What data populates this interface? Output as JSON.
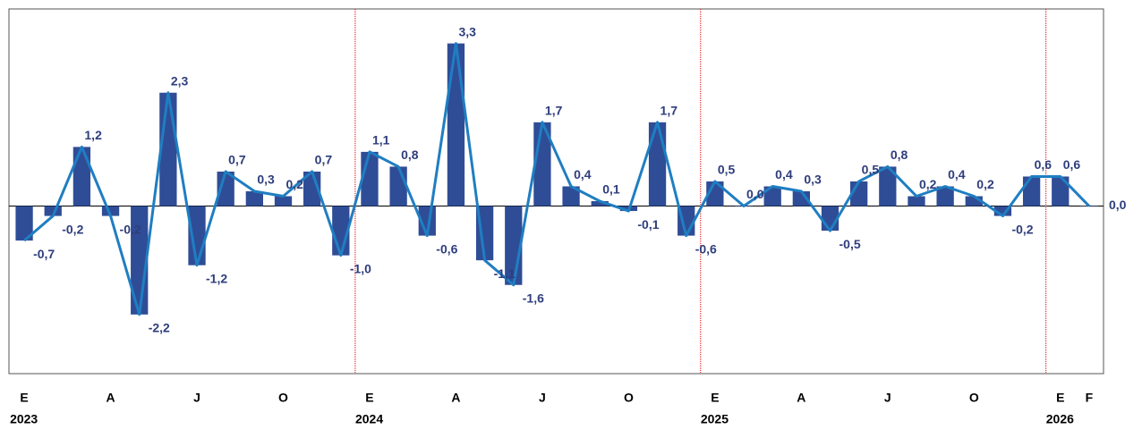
{
  "chart_data": {
    "type": "bar_line",
    "categories": [
      "E",
      null,
      null,
      "A",
      null,
      null,
      "J",
      null,
      null,
      "O",
      null,
      null,
      "E",
      null,
      null,
      "A",
      null,
      null,
      "J",
      null,
      null,
      "O",
      null,
      null,
      "E",
      null,
      null,
      "A",
      null,
      null,
      "J",
      null,
      null,
      "O",
      null,
      null,
      "E",
      "F"
    ],
    "years": [
      "2023",
      null,
      null,
      null,
      null,
      null,
      null,
      null,
      null,
      null,
      null,
      null,
      "2024",
      null,
      null,
      null,
      null,
      null,
      null,
      null,
      null,
      null,
      null,
      null,
      "2025",
      null,
      null,
      null,
      null,
      null,
      null,
      null,
      null,
      null,
      null,
      null,
      "2026",
      null
    ],
    "values": [
      -0.7,
      -0.2,
      1.2,
      -0.2,
      -2.2,
      2.3,
      -1.2,
      0.7,
      0.3,
      0.2,
      0.7,
      -1.0,
      1.1,
      0.8,
      -0.6,
      3.3,
      -1.1,
      -1.6,
      1.7,
      0.4,
      0.1,
      -0.1,
      1.7,
      -0.6,
      0.5,
      0.0,
      0.4,
      0.3,
      -0.5,
      0.5,
      0.8,
      0.2,
      0.4,
      0.2,
      -0.2,
      0.6,
      0.6,
      0.0
    ],
    "value_labels": [
      "-0,7",
      "-0,2",
      "1,2",
      "-0,2",
      "-2,2",
      "2,3",
      "-1,2",
      "0,7",
      "0,3",
      "0,2",
      "0,7",
      "-1,0",
      "1,1",
      "0,8",
      "-0,6",
      "3,3",
      "-1,1",
      "-1,6",
      "1,7",
      "0,4",
      "0,1",
      "-0,1",
      "1,7",
      "-0,6",
      "0,5",
      "0,0",
      "0,4",
      "0,3",
      "-0,5",
      "0,5",
      "0,8",
      "0,2",
      "0,4",
      "0,2",
      "-0,2",
      "0,6",
      "0,6",
      "0,0"
    ],
    "bar_color": "#2f4d96",
    "line_color": "#1f7ec2",
    "label_color": "#2e3d7c",
    "ylim": [
      -3.4,
      4.0
    ]
  }
}
